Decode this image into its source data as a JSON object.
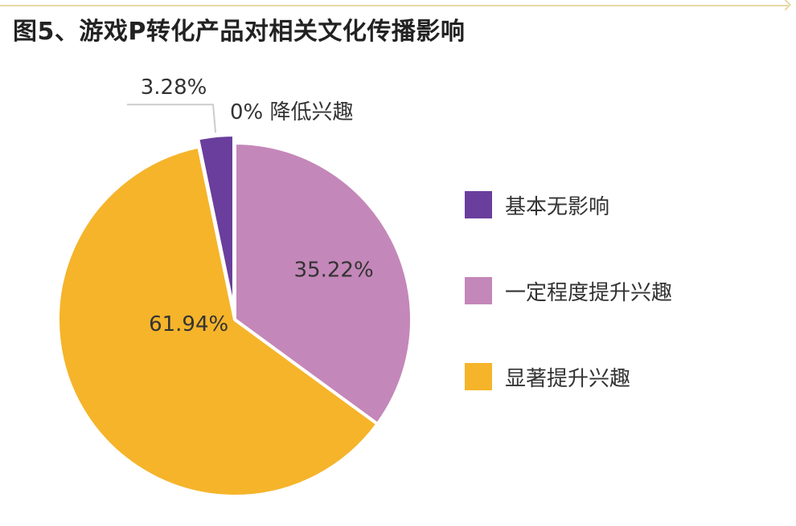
{
  "chart_data": {
    "type": "pie",
    "title": "图5、游戏P转化产品对相关文化传播影响",
    "slices": [
      {
        "label": "基本无影响",
        "value": 3.28,
        "value_label": "3.28%",
        "color": "#6a3e9c"
      },
      {
        "label": "一定程度提升兴趣",
        "value": 35.22,
        "value_label": "35.22%",
        "color": "#c487b9"
      },
      {
        "label": "显著提升兴趣",
        "value": 61.94,
        "value_label": "61.94%",
        "color": "#f5b42a"
      },
      {
        "label": "降低兴趣",
        "value": 0,
        "value_label": "0% 降低兴趣",
        "color": "#888888"
      }
    ],
    "legend": {
      "position": "right",
      "items": [
        {
          "label": "基本无影响",
          "color": "#6a3e9c"
        },
        {
          "label": "一定程度提升兴趣",
          "color": "#c487b9"
        },
        {
          "label": "显著提升兴趣",
          "color": "#f5b42a"
        }
      ]
    }
  }
}
